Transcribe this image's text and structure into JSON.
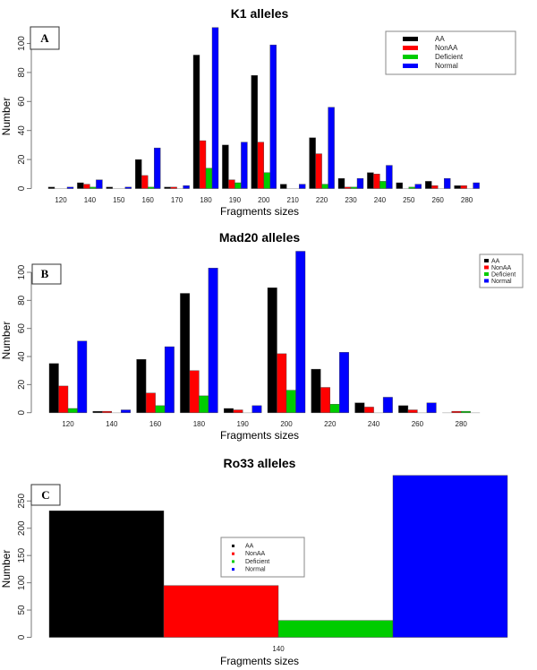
{
  "colors": {
    "AA": "#000000",
    "NonAA": "#ff0000",
    "Deficient": "#00cc00",
    "Normal": "#0000ff"
  },
  "chart_data": [
    {
      "type": "bar",
      "panel": "A",
      "title": "K1 alleles",
      "xlabel": "Fragments sizes",
      "ylabel": "Number",
      "ylim": [
        0,
        112
      ],
      "yticks": [
        0,
        20,
        40,
        60,
        80,
        100
      ],
      "legend_placement": "top-right",
      "categories": [
        "120",
        "140",
        "150",
        "160",
        "170",
        "180",
        "190",
        "200",
        "210",
        "220",
        "230",
        "240",
        "250",
        "260",
        "280"
      ],
      "series": [
        {
          "name": "AA",
          "values": [
            1,
            4,
            1,
            20,
            1,
            92,
            30,
            78,
            3,
            35,
            7,
            11,
            4,
            5,
            2
          ]
        },
        {
          "name": "NonAA",
          "values": [
            0,
            3,
            0,
            9,
            1,
            33,
            6,
            32,
            0,
            24,
            1,
            10,
            0,
            2,
            2
          ]
        },
        {
          "name": "Deficient",
          "values": [
            0,
            1,
            0,
            1,
            0,
            14,
            4,
            11,
            0,
            3,
            1,
            5,
            1,
            0,
            0
          ]
        },
        {
          "name": "Normal",
          "values": [
            1,
            6,
            1,
            28,
            2,
            111,
            32,
            99,
            3,
            56,
            7,
            16,
            3,
            7,
            4
          ]
        }
      ]
    },
    {
      "type": "bar",
      "panel": "B",
      "title": "Mad20 alleles",
      "xlabel": "Fragments sizes",
      "ylabel": "Number",
      "ylim": [
        0,
        116
      ],
      "yticks": [
        0,
        20,
        40,
        60,
        80,
        100
      ],
      "legend_placement": "top-right",
      "categories": [
        "120",
        "140",
        "160",
        "180",
        "190",
        "200",
        "220",
        "240",
        "260",
        "280"
      ],
      "series": [
        {
          "name": "AA",
          "values": [
            35,
            1,
            38,
            85,
            3,
            89,
            31,
            7,
            5,
            0
          ]
        },
        {
          "name": "NonAA",
          "values": [
            19,
            1,
            14,
            30,
            2,
            42,
            18,
            4,
            2,
            1
          ]
        },
        {
          "name": "Deficient",
          "values": [
            3,
            0,
            5,
            12,
            0,
            16,
            6,
            0,
            0,
            1
          ]
        },
        {
          "name": "Normal",
          "values": [
            51,
            2,
            47,
            103,
            5,
            115,
            43,
            11,
            7,
            0
          ]
        }
      ]
    },
    {
      "type": "bar",
      "panel": "C",
      "title": "Ro33 alleles",
      "xlabel": "Fragments sizes",
      "ylabel": "Number",
      "ylim": [
        0,
        300
      ],
      "yticks": [
        0,
        50,
        100,
        150,
        200,
        250
      ],
      "legend_placement": "center",
      "categories": [
        "140"
      ],
      "series": [
        {
          "name": "AA",
          "values": [
            232
          ]
        },
        {
          "name": "NonAA",
          "values": [
            95
          ]
        },
        {
          "name": "Deficient",
          "values": [
            31
          ]
        },
        {
          "name": "Normal",
          "values": [
            297
          ]
        }
      ]
    }
  ]
}
